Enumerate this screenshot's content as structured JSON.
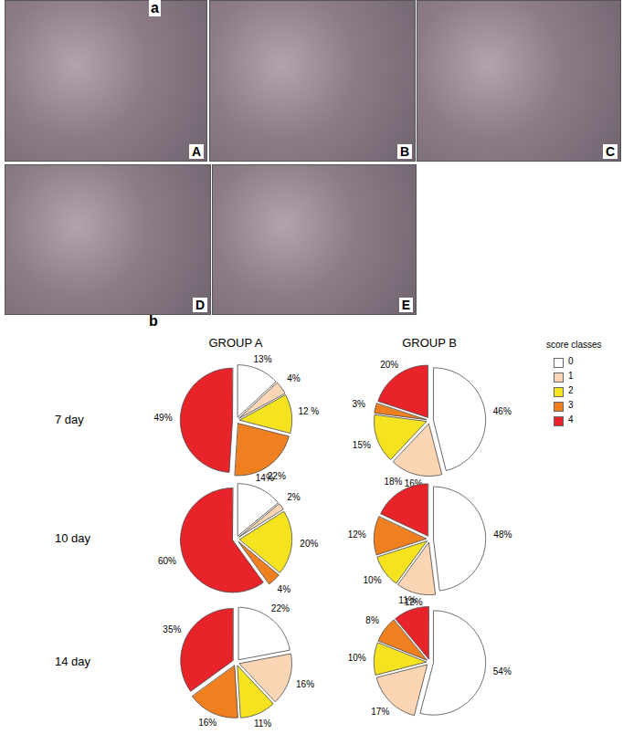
{
  "figure": {
    "panel_a": {
      "label": "a",
      "images": [
        "A",
        "B",
        "C",
        "D",
        "E"
      ]
    },
    "panel_b": {
      "label": "b",
      "columns": [
        "GROUP A",
        "GROUP B"
      ],
      "rows": [
        "7 day",
        "10 day",
        "14 day"
      ],
      "legend_title": "score classes"
    }
  },
  "chart_data": [
    {
      "type": "pie",
      "categories": [
        "0",
        "1",
        "2",
        "3",
        "4"
      ],
      "values": [
        13,
        4,
        12,
        22,
        49
      ],
      "value_labels": [
        "13%",
        "4%",
        "12 %",
        "22%",
        "49%"
      ],
      "colors": [
        "#ffffff",
        "#fcd5b5",
        "#f5e320",
        "#f07f1f",
        "#e8242a"
      ],
      "data_labels": true
    },
    {
      "type": "pie",
      "categories": [
        "0",
        "1",
        "2",
        "3",
        "4"
      ],
      "values": [
        46,
        16,
        15,
        3,
        20
      ],
      "value_labels": [
        "46%",
        "16%",
        "15%",
        "3%",
        "20%"
      ],
      "colors": [
        "#ffffff",
        "#fcd5b5",
        "#f5e320",
        "#f07f1f",
        "#e8242a"
      ],
      "data_labels": true
    },
    {
      "type": "pie",
      "categories": [
        "0",
        "1",
        "2",
        "3",
        "4"
      ],
      "values": [
        14,
        2,
        20,
        4,
        60
      ],
      "value_labels": [
        "14%",
        "2%",
        "20%",
        "4%",
        "60%"
      ],
      "colors": [
        "#ffffff",
        "#fcd5b5",
        "#f5e320",
        "#f07f1f",
        "#e8242a"
      ],
      "data_labels": true
    },
    {
      "type": "pie",
      "categories": [
        "0",
        "1",
        "2",
        "3",
        "4"
      ],
      "values": [
        48,
        12,
        10,
        12,
        18
      ],
      "value_labels": [
        "48%",
        "12%",
        "10%",
        "12%",
        "18%"
      ],
      "colors": [
        "#ffffff",
        "#fcd5b5",
        "#f5e320",
        "#f07f1f",
        "#e8242a"
      ],
      "data_labels": true
    },
    {
      "type": "pie",
      "categories": [
        "0",
        "1",
        "2",
        "3",
        "4"
      ],
      "values": [
        22,
        16,
        11,
        16,
        35
      ],
      "value_labels": [
        "22%",
        "16%",
        "11%",
        "16%",
        "35%"
      ],
      "colors": [
        "#ffffff",
        "#fcd5b5",
        "#f5e320",
        "#f07f1f",
        "#e8242a"
      ],
      "data_labels": true
    },
    {
      "type": "pie",
      "categories": [
        "0",
        "1",
        "2",
        "3",
        "4"
      ],
      "values": [
        54,
        17,
        10,
        8,
        11
      ],
      "value_labels": [
        "54%",
        "17%",
        "10%",
        "8%",
        "11%"
      ],
      "colors": [
        "#ffffff",
        "#fcd5b5",
        "#f5e320",
        "#f07f1f",
        "#e8242a"
      ],
      "data_labels": true
    }
  ]
}
